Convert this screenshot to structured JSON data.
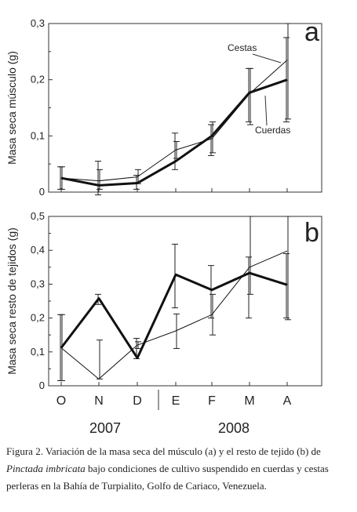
{
  "chart_data": [
    {
      "type": "line",
      "panel": "a",
      "ylabel": "Masa seca músculo (g)",
      "ylim": [
        0,
        0.3
      ],
      "yticks": [
        "0",
        "0,1",
        "0,2",
        "0,3"
      ],
      "categories": [
        "O",
        "N",
        "D",
        "E",
        "F",
        "M",
        "A"
      ],
      "grid": false,
      "series": [
        {
          "name": "Cestas",
          "style": "thin",
          "values": [
            0.025,
            0.02,
            0.027,
            0.075,
            0.095,
            0.175,
            0.235
          ],
          "err_low": [
            0.005,
            0.005,
            0.015,
            0.06,
            0.07,
            0.12,
            0.13
          ],
          "err_high": [
            0.045,
            0.04,
            0.04,
            0.09,
            0.125,
            0.22,
            0.3
          ]
        },
        {
          "name": "Cuerdas",
          "style": "thick",
          "values": [
            0.025,
            0.012,
            0.016,
            0.055,
            0.1,
            0.177,
            0.2
          ],
          "err_low": [
            0.005,
            -0.005,
            0.005,
            0.04,
            0.065,
            0.125,
            0.125
          ],
          "err_high": [
            0.045,
            0.055,
            0.03,
            0.105,
            0.12,
            0.22,
            0.275
          ]
        }
      ]
    },
    {
      "type": "line",
      "panel": "b",
      "ylabel": "Masa seca resto de tejidos (g)",
      "ylim": [
        0,
        0.5
      ],
      "yticks": [
        "0",
        "0,1",
        "0,2",
        "0,3",
        "0,4",
        "0,5"
      ],
      "categories": [
        "O",
        "N",
        "D",
        "E",
        "F",
        "M",
        "A"
      ],
      "grid": false,
      "series": [
        {
          "name": "Cestas",
          "style": "thin",
          "values": [
            0.112,
            0.02,
            0.12,
            0.162,
            0.21,
            0.35,
            0.398
          ],
          "err_low": [
            0.015,
            0.02,
            0.11,
            0.11,
            0.15,
            0.27,
            0.195
          ],
          "err_high": [
            0.21,
            0.135,
            0.13,
            0.212,
            0.27,
            0.5,
            0.5
          ]
        },
        {
          "name": "Cuerdas",
          "style": "thick",
          "values": [
            0.112,
            0.258,
            0.082,
            0.328,
            0.283,
            0.333,
            0.298
          ],
          "err_low": [
            0.015,
            0.24,
            0.08,
            0.23,
            0.2,
            0.2,
            0.2
          ],
          "err_high": [
            0.21,
            0.27,
            0.14,
            0.418,
            0.355,
            0.38,
            0.39
          ]
        }
      ]
    }
  ],
  "series_labels": {
    "cestas": "Cestas",
    "cuerdas": "Cuerdas"
  },
  "x_axis": {
    "months": [
      "O",
      "N",
      "D",
      "E",
      "F",
      "M",
      "A"
    ],
    "years": [
      "2007",
      "2008"
    ]
  },
  "caption": {
    "part1": "Figura 2. Variación de la masa seca del músculo (a) y el resto de tejido (b) de ",
    "species": "Pinctada imbricata",
    "part2": " bajo condiciones de cultivo suspendido en cuerdas y cestas perleras en la Bahía de Turpialito, Golfo de Cariaco, Venezuela."
  }
}
